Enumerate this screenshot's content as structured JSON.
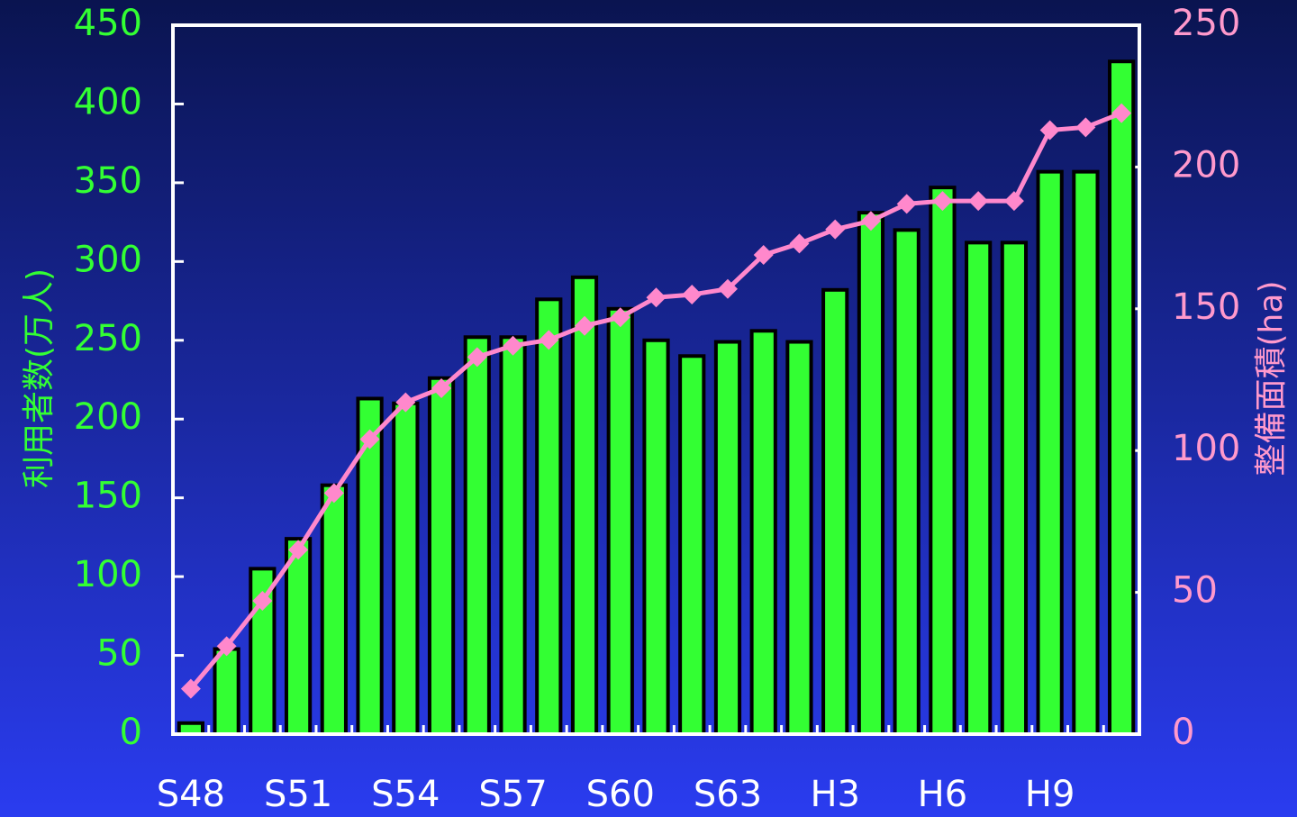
{
  "chart_data": {
    "type": "bar_line",
    "y_label": "利用者数(万人)",
    "y2_label": "整備面積(ha)",
    "categories": [
      "S48",
      null,
      null,
      "S51",
      null,
      null,
      "S54",
      null,
      null,
      "S57",
      null,
      null,
      "S60",
      null,
      null,
      "S63",
      null,
      null,
      "H3",
      null,
      null,
      "H6",
      null,
      null,
      "H9",
      null,
      null
    ],
    "series": [
      {
        "type": "bar",
        "color": "#33ff33",
        "values": [
          7,
          54,
          105,
          124,
          158,
          213,
          210,
          226,
          252,
          252,
          276,
          290,
          270,
          250,
          240,
          249,
          256,
          249,
          282,
          331,
          320,
          347,
          312,
          312,
          357,
          357,
          427
        ]
      },
      {
        "type": "line",
        "axis": "y2",
        "color": "#ff88cc",
        "values": [
          16,
          31,
          47,
          65,
          85,
          104,
          117,
          122,
          133,
          137,
          139,
          144,
          147,
          154,
          155,
          157,
          169,
          173,
          178,
          181,
          187,
          188,
          188,
          188,
          213,
          214,
          219
        ]
      }
    ],
    "ylim": [
      0,
      450
    ],
    "yticks": [
      0,
      50,
      100,
      150,
      200,
      250,
      300,
      350,
      400,
      450
    ],
    "y2lim": [
      0,
      250
    ],
    "y2ticks": [
      0,
      50,
      100,
      150,
      200,
      250
    ]
  }
}
